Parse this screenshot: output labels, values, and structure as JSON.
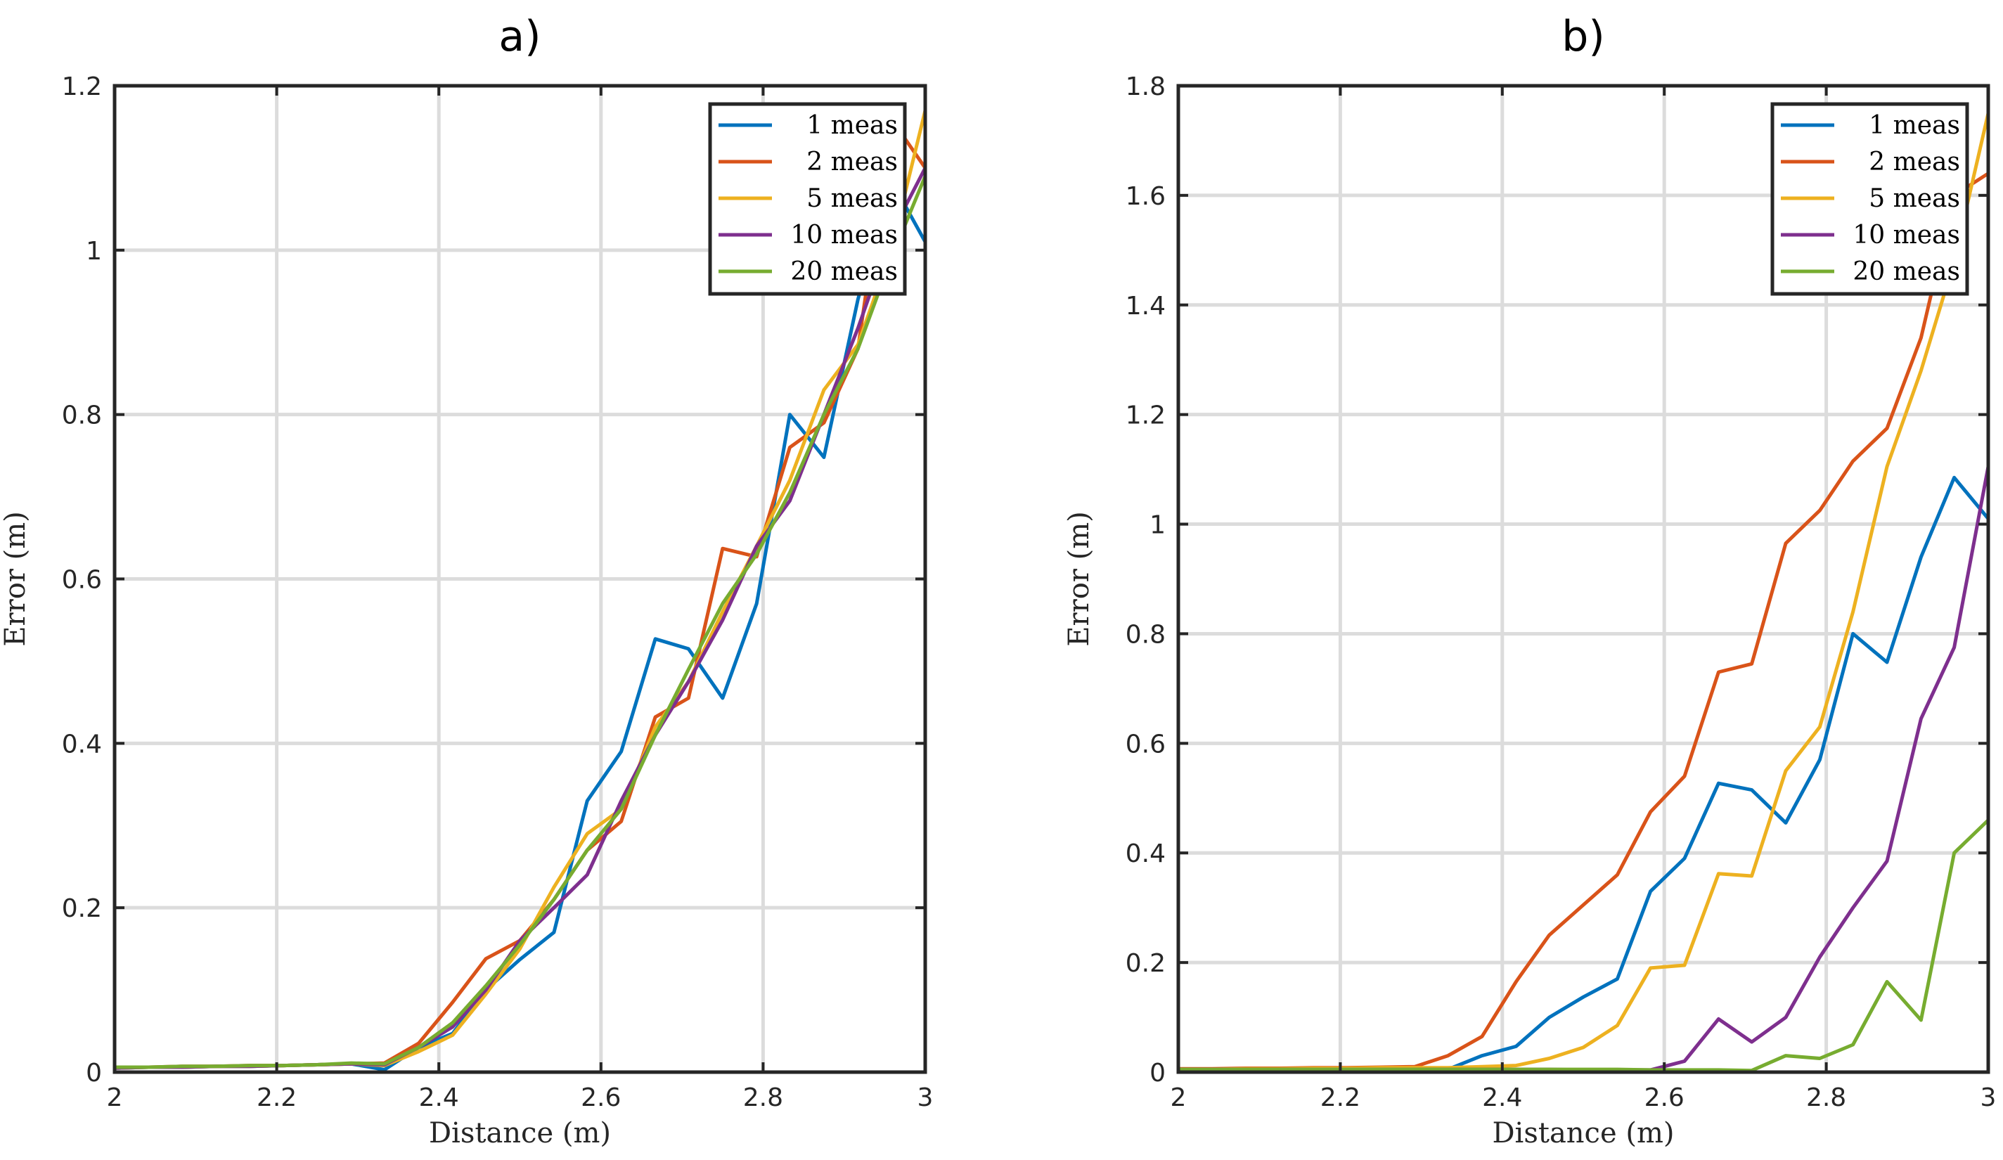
{
  "chart_data": [
    {
      "type": "line",
      "title": "a)",
      "xlabel": "Distance (m)",
      "ylabel": "Error (m)",
      "xlim": [
        2,
        3
      ],
      "ylim": [
        0,
        1.2
      ],
      "xticks": [
        2,
        2.2,
        2.4,
        2.6,
        2.8,
        3
      ],
      "xtick_labels": [
        "2",
        "2.2",
        "2.4",
        "2.6",
        "2.8",
        "3"
      ],
      "yticks": [
        0,
        0.2,
        0.4,
        0.6,
        0.8,
        1,
        1.2
      ],
      "ytick_labels": [
        "0",
        "0.2",
        "0.4",
        "0.6",
        "0.8",
        "1",
        "1.2"
      ],
      "grid": true,
      "legend_position": "top-right",
      "x": [
        2,
        2.042,
        2.083,
        2.125,
        2.167,
        2.208,
        2.25,
        2.292,
        2.333,
        2.375,
        2.417,
        2.458,
        2.5,
        2.542,
        2.583,
        2.625,
        2.667,
        2.708,
        2.75,
        2.792,
        2.833,
        2.875,
        2.917,
        2.958,
        3
      ],
      "series": [
        {
          "name": "1 meas",
          "color": "#0072BD",
          "values": [
            0.005,
            0.006,
            0.006,
            0.007,
            0.007,
            0.008,
            0.009,
            0.01,
            0.003,
            0.03,
            0.047,
            0.1,
            0.137,
            0.17,
            0.33,
            0.39,
            0.527,
            0.515,
            0.455,
            0.57,
            0.8,
            0.748,
            0.94,
            1.085,
            1.01
          ]
        },
        {
          "name": "2 meas",
          "color": "#D95319",
          "values": [
            0.006,
            0.006,
            0.007,
            0.007,
            0.008,
            0.008,
            0.009,
            0.01,
            0.011,
            0.035,
            0.085,
            0.138,
            0.16,
            0.21,
            0.27,
            0.305,
            0.432,
            0.455,
            0.637,
            0.627,
            0.76,
            0.79,
            0.88,
            1.16,
            1.1
          ]
        },
        {
          "name": "5 meas",
          "color": "#EDB120",
          "values": [
            0.005,
            0.006,
            0.006,
            0.007,
            0.007,
            0.008,
            0.009,
            0.01,
            0.008,
            0.025,
            0.045,
            0.095,
            0.15,
            0.225,
            0.29,
            0.32,
            0.42,
            0.475,
            0.56,
            0.64,
            0.72,
            0.83,
            0.885,
            1.0,
            1.17
          ]
        },
        {
          "name": "10 meas",
          "color": "#7E2F8E",
          "values": [
            0.005,
            0.006,
            0.006,
            0.007,
            0.007,
            0.008,
            0.009,
            0.01,
            0.009,
            0.03,
            0.055,
            0.1,
            0.16,
            0.2,
            0.24,
            0.33,
            0.41,
            0.475,
            0.55,
            0.64,
            0.695,
            0.8,
            0.905,
            1.02,
            1.1
          ]
        },
        {
          "name": "20 meas",
          "color": "#77AC30",
          "values": [
            0.006,
            0.006,
            0.007,
            0.007,
            0.008,
            0.008,
            0.009,
            0.011,
            0.01,
            0.03,
            0.06,
            0.105,
            0.155,
            0.21,
            0.27,
            0.32,
            0.41,
            0.49,
            0.57,
            0.63,
            0.705,
            0.8,
            0.88,
            0.99,
            1.09
          ]
        }
      ]
    },
    {
      "type": "line",
      "title": "b)",
      "xlabel": "Distance (m)",
      "ylabel": "Error (m)",
      "xlim": [
        2,
        3
      ],
      "ylim": [
        0,
        1.8
      ],
      "xticks": [
        2,
        2.2,
        2.4,
        2.6,
        2.8,
        3
      ],
      "xtick_labels": [
        "2",
        "2.2",
        "2.4",
        "2.6",
        "2.8",
        "3"
      ],
      "yticks": [
        0,
        0.2,
        0.4,
        0.6,
        0.8,
        1,
        1.2,
        1.4,
        1.6,
        1.8
      ],
      "ytick_labels": [
        "0",
        "0.2",
        "0.4",
        "0.6",
        "0.8",
        "1",
        "1.2",
        "1.4",
        "1.6",
        "1.8"
      ],
      "grid": true,
      "legend_position": "top-right",
      "x": [
        2,
        2.042,
        2.083,
        2.125,
        2.167,
        2.208,
        2.25,
        2.292,
        2.333,
        2.375,
        2.417,
        2.458,
        2.5,
        2.542,
        2.583,
        2.625,
        2.667,
        2.708,
        2.75,
        2.792,
        2.833,
        2.875,
        2.917,
        2.958,
        3
      ],
      "series": [
        {
          "name": "1 meas",
          "color": "#0072BD",
          "values": [
            0.005,
            0.005,
            0.006,
            0.006,
            0.007,
            0.007,
            0.008,
            0.008,
            0.005,
            0.03,
            0.047,
            0.1,
            0.137,
            0.17,
            0.33,
            0.39,
            0.527,
            0.515,
            0.455,
            0.57,
            0.8,
            0.748,
            0.94,
            1.085,
            1.01
          ]
        },
        {
          "name": "2 meas",
          "color": "#D95319",
          "values": [
            0.006,
            0.006,
            0.007,
            0.007,
            0.008,
            0.008,
            0.009,
            0.01,
            0.03,
            0.065,
            0.165,
            0.25,
            0.305,
            0.36,
            0.475,
            0.54,
            0.73,
            0.745,
            0.965,
            1.025,
            1.115,
            1.175,
            1.34,
            1.6,
            1.64
          ]
        },
        {
          "name": "5 meas",
          "color": "#EDB120",
          "values": [
            0.005,
            0.005,
            0.006,
            0.006,
            0.007,
            0.007,
            0.008,
            0.008,
            0.008,
            0.01,
            0.012,
            0.025,
            0.045,
            0.085,
            0.19,
            0.195,
            0.362,
            0.358,
            0.55,
            0.63,
            0.84,
            1.105,
            1.28,
            1.48,
            1.75
          ]
        },
        {
          "name": "10 meas",
          "color": "#7E2F8E",
          "values": [
            0.005,
            0.005,
            0.005,
            0.005,
            0.005,
            0.005,
            0.005,
            0.005,
            0.005,
            0.005,
            0.005,
            0.005,
            0.004,
            0.004,
            0.004,
            0.02,
            0.097,
            0.055,
            0.1,
            0.21,
            0.3,
            0.385,
            0.645,
            0.775,
            1.105
          ]
        },
        {
          "name": "20 meas",
          "color": "#77AC30",
          "values": [
            0.005,
            0.005,
            0.005,
            0.005,
            0.005,
            0.005,
            0.005,
            0.005,
            0.005,
            0.005,
            0.005,
            0.005,
            0.005,
            0.005,
            0.004,
            0.004,
            0.004,
            0.003,
            0.03,
            0.025,
            0.05,
            0.165,
            0.095,
            0.4,
            0.46
          ]
        }
      ]
    }
  ]
}
